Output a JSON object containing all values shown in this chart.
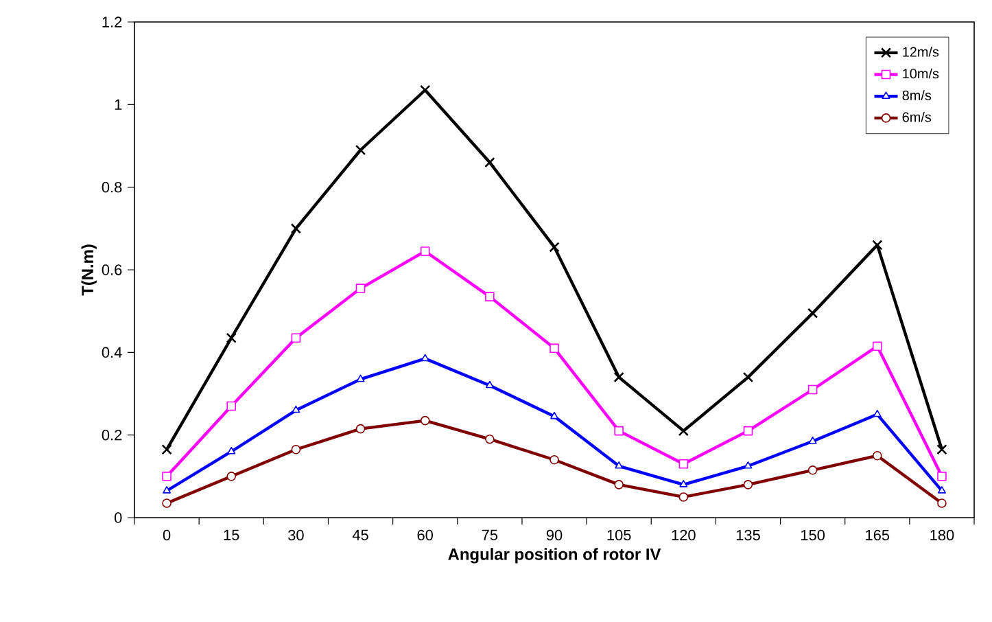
{
  "chart_data": {
    "type": "line",
    "xlabel": "Angular position of rotor IV",
    "ylabel": "T(N.m)",
    "categories": [
      "0",
      "15",
      "30",
      "45",
      "60",
      "75",
      "90",
      "105",
      "120",
      "135",
      "150",
      "165",
      "180"
    ],
    "ylim": [
      0,
      1.2
    ],
    "yticks": [
      0,
      0.2,
      0.4,
      0.6,
      0.8,
      1,
      1.2
    ],
    "grid": false,
    "legend": "top right",
    "series": [
      {
        "name": "12m/s",
        "color": "#000000",
        "marker": "cross",
        "values": [
          0.165,
          0.435,
          0.7,
          0.89,
          1.035,
          0.86,
          0.655,
          0.34,
          0.21,
          0.34,
          0.495,
          0.66,
          0.165
        ]
      },
      {
        "name": "10m/s",
        "color": "#ff00ff",
        "marker": "square",
        "values": [
          0.1,
          0.27,
          0.435,
          0.555,
          0.645,
          0.535,
          0.41,
          0.21,
          0.13,
          0.21,
          0.31,
          0.415,
          0.1
        ]
      },
      {
        "name": "8m/s",
        "color": "#0000ff",
        "marker": "triangle",
        "values": [
          0.065,
          0.16,
          0.26,
          0.335,
          0.385,
          0.32,
          0.245,
          0.125,
          0.08,
          0.125,
          0.185,
          0.25,
          0.065
        ]
      },
      {
        "name": "6m/s",
        "color": "#800000",
        "marker": "circle",
        "values": [
          0.035,
          0.1,
          0.165,
          0.215,
          0.235,
          0.19,
          0.14,
          0.08,
          0.05,
          0.08,
          0.115,
          0.15,
          0.035
        ]
      }
    ]
  }
}
